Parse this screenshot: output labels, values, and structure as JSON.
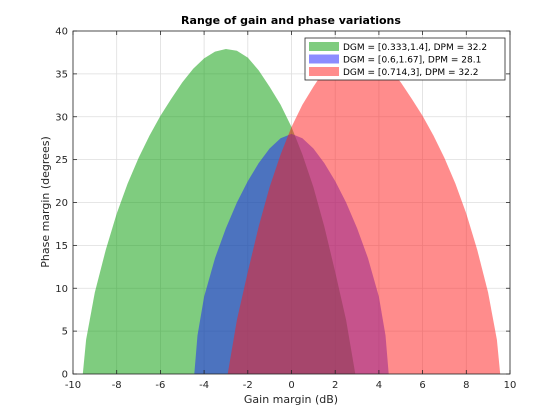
{
  "chart_data": {
    "type": "area",
    "title": "Range of gain and phase variations",
    "xlabel": "Gain margin (dB)",
    "ylabel": "Phase margin (degrees)",
    "xlim": [
      -10,
      10
    ],
    "ylim": [
      0,
      40
    ],
    "xticks": [
      -10,
      -8,
      -6,
      -4,
      -2,
      0,
      2,
      4,
      6,
      8,
      10
    ],
    "yticks": [
      0,
      5,
      10,
      15,
      20,
      25,
      30,
      35,
      40
    ],
    "grid": true,
    "legend_position": "top-right",
    "series": [
      {
        "name": "DGM = [0.333,1.4], DPM = 32.2",
        "color": "#009900",
        "alpha": 0.5,
        "x": [
          -9.55,
          -9.4,
          -9.0,
          -8.5,
          -8.0,
          -7.5,
          -7.0,
          -6.5,
          -6.0,
          -5.5,
          -5.0,
          -4.5,
          -4.0,
          -3.5,
          -3.0,
          -2.5,
          -2.0,
          -1.5,
          -1.0,
          -0.5,
          0.0,
          0.5,
          1.0,
          1.5,
          2.0,
          2.5,
          2.92
        ],
        "y": [
          0,
          4.0,
          9.5,
          14.5,
          18.7,
          22.2,
          25.2,
          27.8,
          30.1,
          32.1,
          34.0,
          35.6,
          36.8,
          37.6,
          37.9,
          37.7,
          36.9,
          35.4,
          33.5,
          31.4,
          28.8,
          25.6,
          21.8,
          17.2,
          11.9,
          6.3,
          0
        ]
      },
      {
        "name": "DGM = [0.6,1.67], DPM = 28.1",
        "color": "#1a1aff",
        "alpha": 0.5,
        "x": [
          -4.45,
          -4.3,
          -4.0,
          -3.5,
          -3.0,
          -2.5,
          -2.0,
          -1.5,
          -1.0,
          -0.5,
          0.0,
          0.5,
          1.0,
          1.5,
          2.0,
          2.5,
          3.0,
          3.5,
          4.0,
          4.3,
          4.45
        ],
        "y": [
          0,
          4.5,
          9.0,
          13.5,
          17.0,
          20.0,
          22.5,
          24.6,
          26.3,
          27.5,
          28.0,
          27.5,
          26.3,
          24.6,
          22.5,
          20.0,
          17.0,
          13.5,
          9.0,
          4.5,
          0
        ]
      },
      {
        "name": "DGM = [0.714,3], DPM = 32.2",
        "color": "#ff1a1a",
        "alpha": 0.5,
        "x": [
          -2.92,
          -2.5,
          -2.0,
          -1.5,
          -1.0,
          -0.5,
          0.0,
          0.5,
          1.0,
          1.5,
          2.0,
          2.5,
          3.0,
          3.5,
          4.0,
          4.5,
          5.0,
          5.5,
          6.0,
          6.5,
          7.0,
          7.5,
          8.0,
          8.5,
          9.0,
          9.4,
          9.55
        ],
        "y": [
          0,
          6.3,
          11.9,
          17.2,
          21.8,
          25.6,
          28.8,
          31.4,
          33.5,
          35.4,
          36.9,
          37.7,
          37.9,
          37.6,
          36.8,
          35.6,
          34.0,
          32.1,
          30.1,
          27.8,
          25.2,
          22.2,
          18.7,
          14.5,
          9.5,
          4.0,
          0
        ]
      }
    ]
  }
}
